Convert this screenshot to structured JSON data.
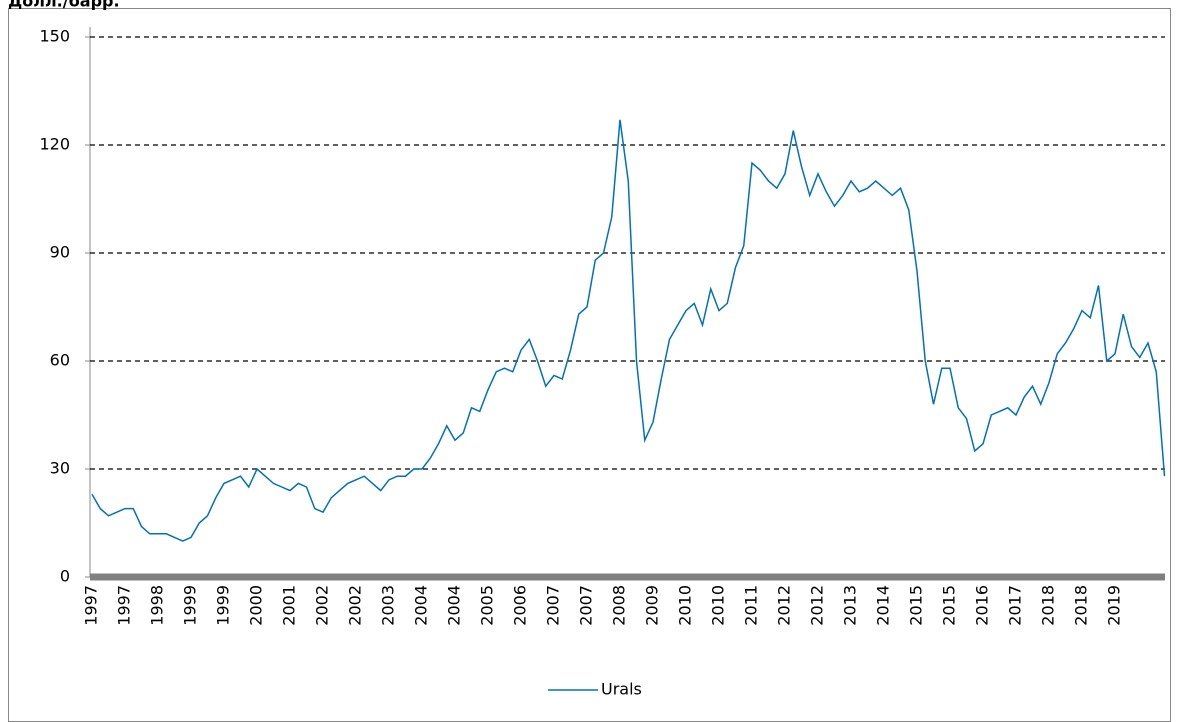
{
  "chart_data": {
    "type": "line",
    "title": "Долл./барр.",
    "categories": [
      "1997",
      null,
      null,
      null,
      "1997",
      null,
      null,
      null,
      "1998",
      null,
      null,
      null,
      "1999",
      null,
      null,
      null,
      "1999",
      null,
      null,
      null,
      "2000",
      null,
      null,
      null,
      "2001",
      null,
      null,
      null,
      "2002",
      null,
      null,
      null,
      "2002",
      null,
      null,
      null,
      "2003",
      null,
      null,
      null,
      "2004",
      null,
      null,
      null,
      "2004",
      null,
      null,
      null,
      "2005",
      null,
      null,
      null,
      "2006",
      null,
      null,
      null,
      "2007",
      null,
      null,
      null,
      "2007",
      null,
      null,
      null,
      "2008",
      null,
      null,
      null,
      "2009",
      null,
      null,
      null,
      "2010",
      null,
      null,
      null,
      "2010",
      null,
      null,
      null,
      "2011",
      null,
      null,
      null,
      "2012",
      null,
      null,
      null,
      "2012",
      null,
      null,
      null,
      "2013",
      null,
      null,
      null,
      "2014",
      null,
      null,
      null,
      "2015",
      null,
      null,
      null,
      "2015",
      null,
      null,
      null,
      "2016",
      null,
      null,
      null,
      "2017",
      null,
      null,
      null,
      "2018",
      null,
      null,
      null,
      "2018",
      null,
      null,
      null,
      "2019",
      null,
      null,
      null,
      null,
      null,
      null
    ],
    "series": [
      {
        "name": "Urals",
        "color": "#0070c0",
        "values": [
          23,
          19,
          17,
          18,
          19,
          19,
          14,
          12,
          12,
          12,
          11,
          10,
          11,
          15,
          17,
          22,
          26,
          27,
          28,
          25,
          30,
          28,
          26,
          25,
          24,
          26,
          25,
          19,
          18,
          22,
          24,
          26,
          27,
          28,
          26,
          24,
          27,
          28,
          28,
          30,
          30,
          33,
          37,
          42,
          38,
          40,
          47,
          46,
          52,
          57,
          58,
          57,
          63,
          66,
          60,
          53,
          56,
          55,
          63,
          73,
          75,
          88,
          90,
          100,
          127,
          110,
          60,
          38,
          43,
          55,
          66,
          70,
          74,
          76,
          70,
          80,
          74,
          76,
          86,
          92,
          115,
          113,
          110,
          108,
          112,
          124,
          114,
          106,
          112,
          107,
          103,
          106,
          110,
          107,
          108,
          110,
          108,
          106,
          108,
          102,
          85,
          60,
          48,
          58,
          58,
          47,
          44,
          35,
          37,
          45,
          46,
          47,
          45,
          50,
          53,
          48,
          54,
          62,
          65,
          69,
          74,
          72,
          81,
          60,
          62,
          73,
          64,
          61,
          65,
          57,
          28
        ]
      }
    ],
    "ylim": [
      0,
      150
    ],
    "yticks": [
      0,
      30,
      60,
      90,
      120,
      150
    ],
    "grid": true,
    "legend": "bottom"
  }
}
